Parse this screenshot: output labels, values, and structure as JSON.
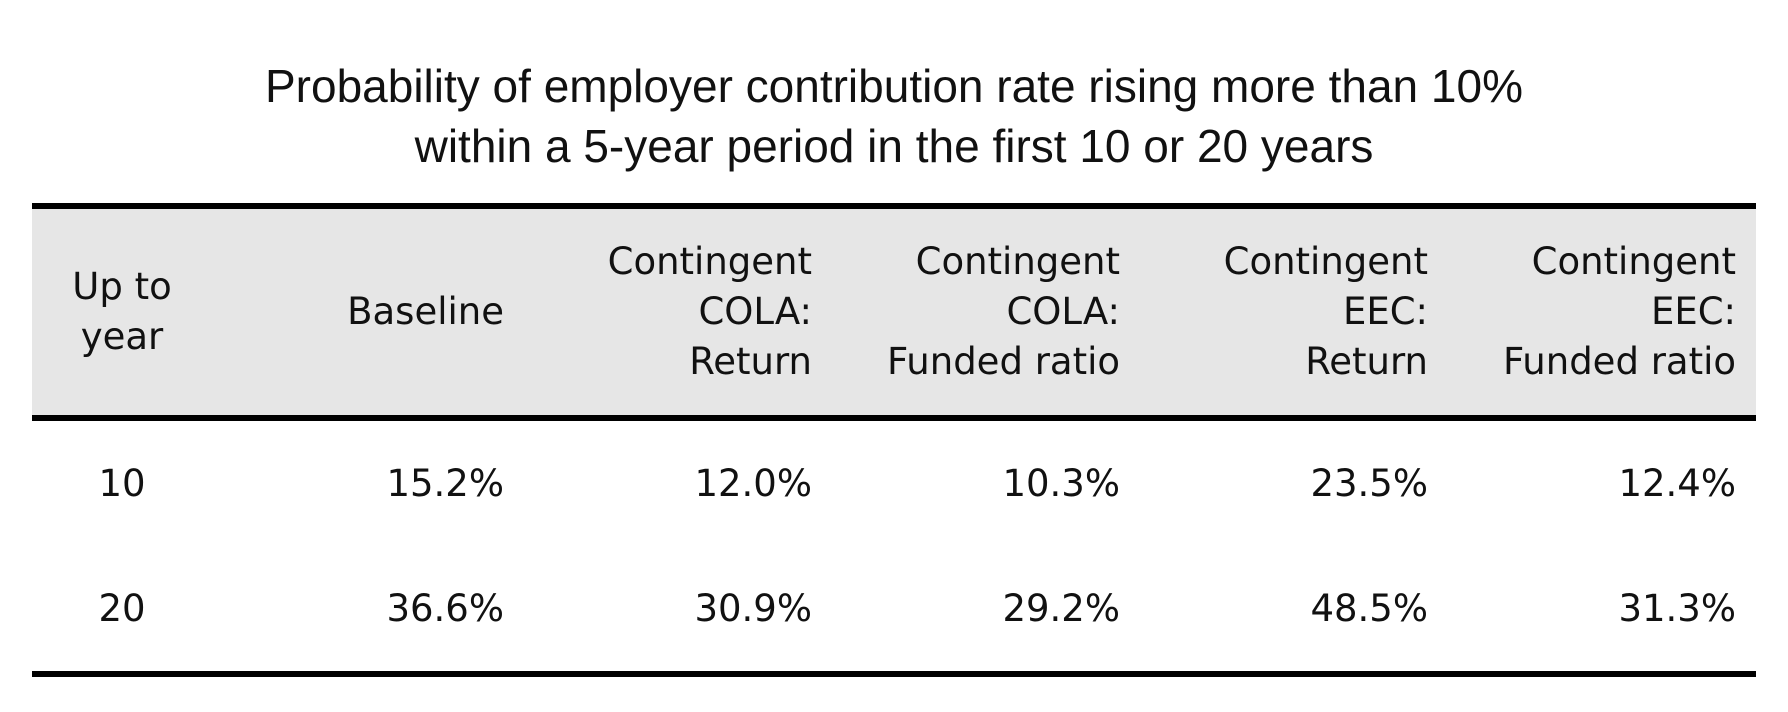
{
  "chart_data": {
    "type": "table",
    "title_lines": [
      "Probability of employer contribution rate rising more than 10%",
      "within a 5-year period in the first 10 or 20 years"
    ],
    "columns": [
      {
        "key": "year",
        "lines": [
          "Up to",
          "year"
        ]
      },
      {
        "key": "baseline",
        "lines": [
          "Baseline"
        ]
      },
      {
        "key": "cc_return",
        "lines": [
          "Contingent",
          "COLA:",
          "Return"
        ]
      },
      {
        "key": "cc_funded",
        "lines": [
          "Contingent",
          "COLA:",
          "Funded ratio"
        ]
      },
      {
        "key": "ce_return",
        "lines": [
          "Contingent",
          "EEC:",
          "Return"
        ]
      },
      {
        "key": "ce_funded",
        "lines": [
          "Contingent",
          "EEC:",
          "Funded ratio"
        ]
      }
    ],
    "rows": [
      {
        "year": "10",
        "values": [
          "15.2%",
          "12.0%",
          "10.3%",
          "23.5%",
          "12.4%"
        ]
      },
      {
        "year": "20",
        "values": [
          "36.6%",
          "30.9%",
          "29.2%",
          "48.5%",
          "31.3%"
        ]
      }
    ]
  }
}
